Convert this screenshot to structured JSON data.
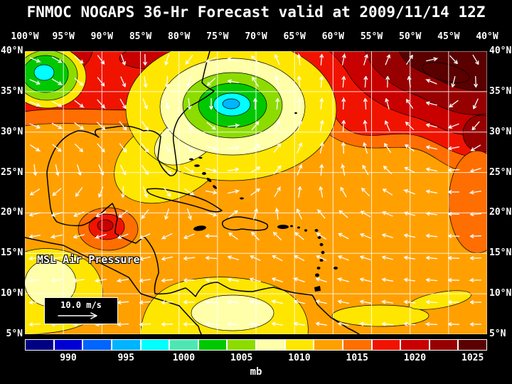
{
  "title": "FNMOC NOGAPS 36-Hr Forecast valid at 2009/11/14 12Z",
  "map": {
    "overlay_label": "MSL Air Pressure",
    "wind_legend": {
      "speed_label": "10.0 m/s"
    }
  },
  "axes": {
    "lon_labels": [
      "100°W",
      "95°W",
      "90°W",
      "85°W",
      "80°W",
      "75°W",
      "70°W",
      "65°W",
      "60°W",
      "55°W",
      "50°W",
      "45°W",
      "40°W"
    ],
    "lat_labels": [
      "40°N",
      "35°N",
      "30°N",
      "25°N",
      "20°N",
      "15°N",
      "10°N",
      "5°N"
    ]
  },
  "colorbar": {
    "unit": "mb",
    "tick_labels": [
      "990",
      "995",
      "1000",
      "1005",
      "1010",
      "1015",
      "1020",
      "1025"
    ],
    "min_mb": 987.5,
    "max_mb": 1027.5,
    "step_mb": 2.5,
    "colors": [
      "#000082",
      "#0000d2",
      "#0064ff",
      "#00b4ff",
      "#00ffff",
      "#50e6b4",
      "#00c800",
      "#8cdc00",
      "#ffffaa",
      "#ffe600",
      "#ffa000",
      "#ff6e00",
      "#f01400",
      "#c80000",
      "#960000",
      "#5a0000"
    ]
  },
  "chart_data": {
    "type": "heatmap",
    "title": "FNMOC NOGAPS 36-Hr Forecast valid at 2009/11/14 12Z",
    "variable": "MSL Air Pressure",
    "units": "mb",
    "lon_ticks_deg_west": [
      100,
      95,
      90,
      85,
      80,
      75,
      70,
      65,
      60,
      55,
      50,
      45,
      40
    ],
    "lat_ticks_deg_north": [
      40,
      35,
      30,
      25,
      20,
      15,
      10,
      5
    ],
    "grid_interval_deg": 5,
    "colorbar_ticks_mb": [
      990,
      995,
      1000,
      1005,
      1010,
      1015,
      1020,
      1025
    ],
    "colorbar_range_mb": [
      987.5,
      1027.5
    ],
    "tropics_background_mb": 1014,
    "features": [
      {
        "name": "cyclone-low",
        "lon": "73°W",
        "lat": "33°N",
        "approx_central_pressure_mb": 996
      },
      {
        "name": "secondary-low",
        "lon": "97°W",
        "lat": "37°N",
        "approx_central_pressure_mb": 999
      },
      {
        "name": "subtropical-high",
        "lon": "47°W",
        "lat": "37°N",
        "approx_central_pressure_mb": 1027
      },
      {
        "name": "central-america-local-high",
        "lon": "91°W",
        "lat": "18°N",
        "approx_central_pressure_mb": 1021
      }
    ],
    "wind_vector_scale_m_per_s": 10.0,
    "legend_position": "bottom"
  }
}
